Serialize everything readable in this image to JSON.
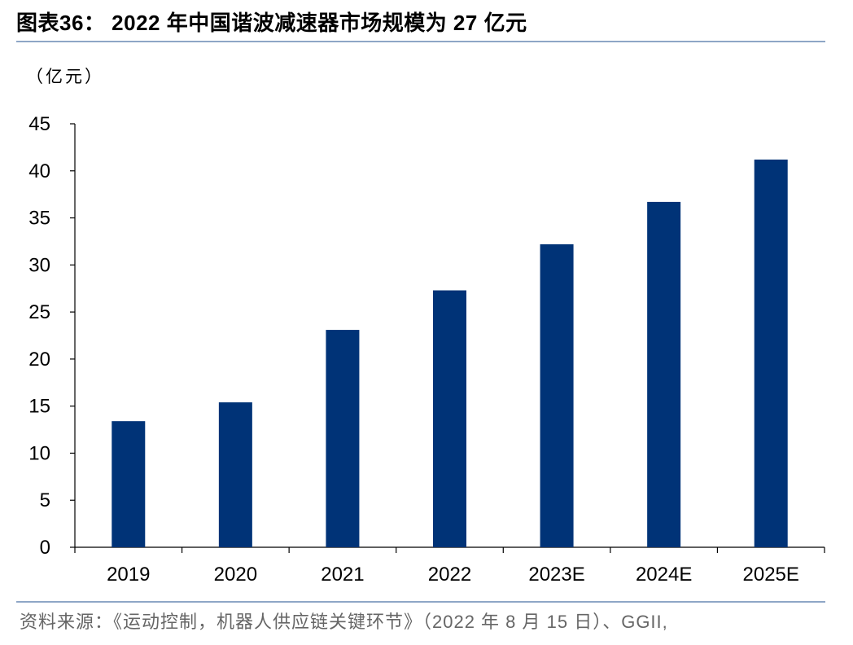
{
  "header": {
    "title": "图表36： 2022 年中国谐波减速器市场规模为 27 亿元"
  },
  "chart_data": {
    "type": "bar",
    "unit_label": "（亿元）",
    "categories": [
      "2019",
      "2020",
      "2021",
      "2022",
      "2023E",
      "2024E",
      "2025E"
    ],
    "series": [
      {
        "values": [
          13.4,
          15.4,
          23.1,
          27.3,
          32.2,
          36.7,
          41.2
        ]
      }
    ],
    "ylim": [
      0,
      45
    ],
    "yticks": [
      0,
      5,
      10,
      15,
      20,
      25,
      30,
      35,
      40,
      45
    ],
    "xlabel": "",
    "ylabel": "",
    "grid": false,
    "legend": "none",
    "bar_color": "#003377"
  },
  "footer": {
    "source": "资料来源：《运动控制，机器人供应链关键环节》（2022 年 8 月 15 日）、GGII,"
  }
}
